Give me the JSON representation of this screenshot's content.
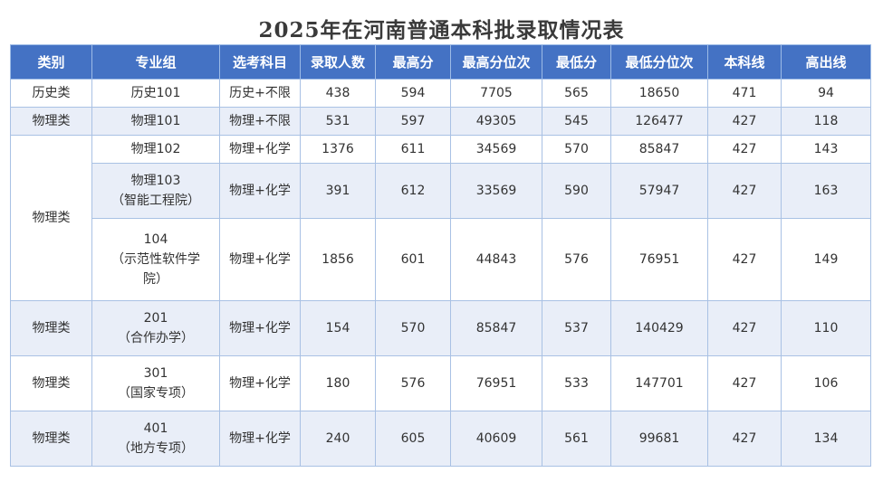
{
  "title": "2025年在河南普通本科批录取情况表",
  "headers": [
    "类别",
    "专业组",
    "选考科目",
    "录取人数",
    "最高分",
    "最高分位次",
    "最低分",
    "最低分位次",
    "本科线",
    "高出线"
  ],
  "rows": [
    {
      "category": "历史类",
      "group": [
        "历史101"
      ],
      "subjects": "历史+不限",
      "admitted": "438",
      "max_score": "594",
      "max_rank": "7705",
      "min_score": "565",
      "min_rank": "18650",
      "line": "471",
      "above": "94"
    },
    {
      "category": "物理类",
      "group": [
        "物理101"
      ],
      "subjects": "物理+不限",
      "admitted": "531",
      "max_score": "597",
      "max_rank": "49305",
      "min_score": "545",
      "min_rank": "126477",
      "line": "427",
      "above": "118"
    },
    {
      "category": "物理类",
      "group": [
        "物理102"
      ],
      "subjects": "物理+化学",
      "admitted": "1376",
      "max_score": "611",
      "max_rank": "34569",
      "min_score": "570",
      "min_rank": "85847",
      "line": "427",
      "above": "143"
    },
    {
      "group": [
        "物理103",
        "（智能工程院）"
      ],
      "subjects": "物理+化学",
      "admitted": "391",
      "max_score": "612",
      "max_rank": "33569",
      "min_score": "590",
      "min_rank": "57947",
      "line": "427",
      "above": "163"
    },
    {
      "group": [
        "104",
        "（示范性软件学",
        "院）"
      ],
      "subjects": "物理+化学",
      "admitted": "1856",
      "max_score": "601",
      "max_rank": "44843",
      "min_score": "576",
      "min_rank": "76951",
      "line": "427",
      "above": "149"
    },
    {
      "category": "物理类",
      "group": [
        "201",
        "（合作办学）"
      ],
      "subjects": "物理+化学",
      "admitted": "154",
      "max_score": "570",
      "max_rank": "85847",
      "min_score": "537",
      "min_rank": "140429",
      "line": "427",
      "above": "110"
    },
    {
      "category": "物理类",
      "group": [
        "301",
        "（国家专项）"
      ],
      "subjects": "物理+化学",
      "admitted": "180",
      "max_score": "576",
      "max_rank": "76951",
      "min_score": "533",
      "min_rank": "147701",
      "line": "427",
      "above": "106"
    },
    {
      "category": "物理类",
      "group": [
        "401",
        "（地方专项）"
      ],
      "subjects": "物理+化学",
      "admitted": "240",
      "max_score": "605",
      "max_rank": "40609",
      "min_score": "561",
      "min_rank": "99681",
      "line": "427",
      "above": "134"
    }
  ]
}
